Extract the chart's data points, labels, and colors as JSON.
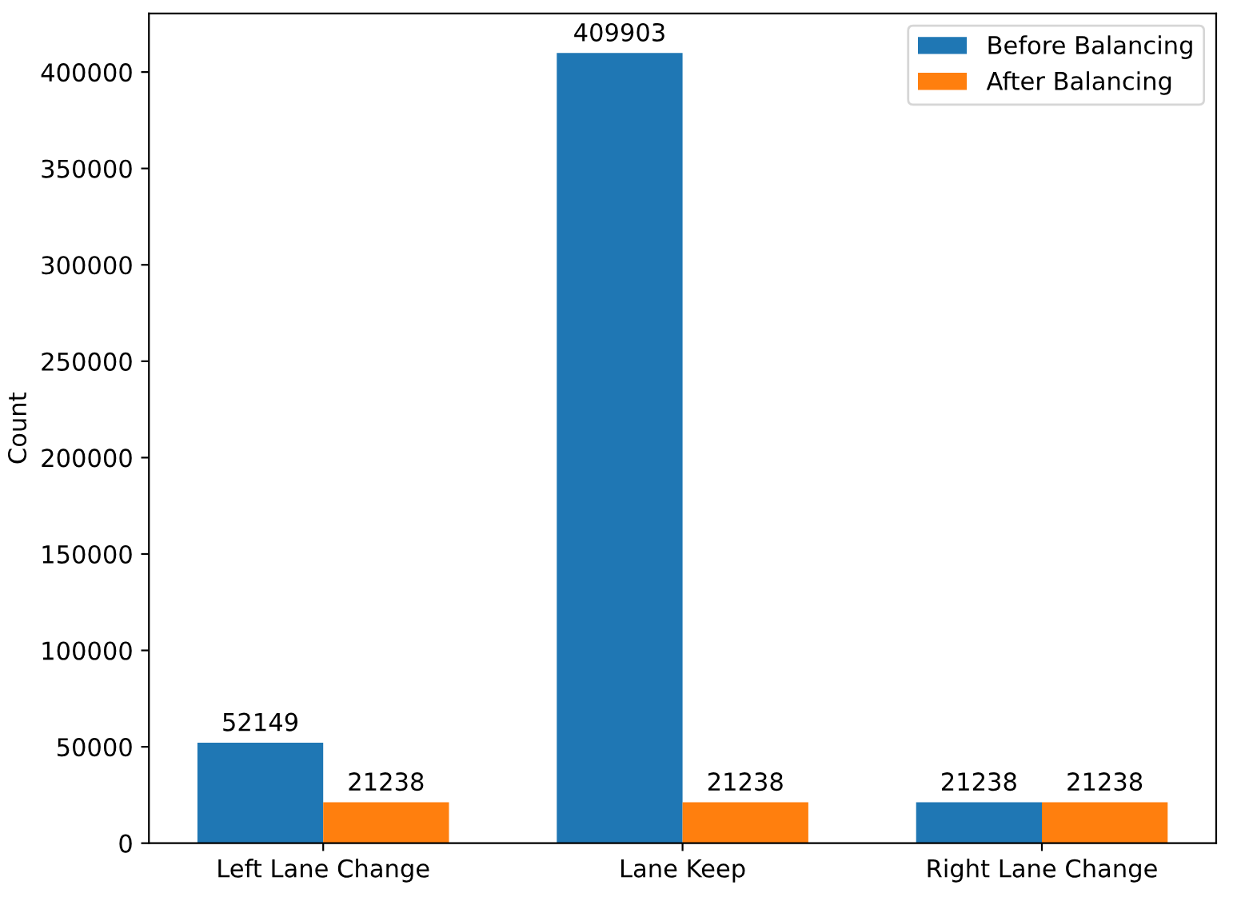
{
  "chart_data": {
    "type": "bar",
    "ylabel": "Count",
    "categories": [
      "Left Lane Change",
      "Lane Keep",
      "Right Lane Change"
    ],
    "series": [
      {
        "name": "Before Balancing",
        "color": "#1f77b4",
        "values": [
          52149,
          409903,
          21238
        ]
      },
      {
        "name": "After Balancing",
        "color": "#ff7f0e",
        "values": [
          21238,
          21238,
          21238
        ]
      }
    ],
    "ylim": [
      0,
      430398
    ],
    "yticks": [
      0,
      50000,
      100000,
      150000,
      200000,
      250000,
      300000,
      350000,
      400000
    ],
    "data_labels": true,
    "legend": "top right",
    "grid": false
  }
}
